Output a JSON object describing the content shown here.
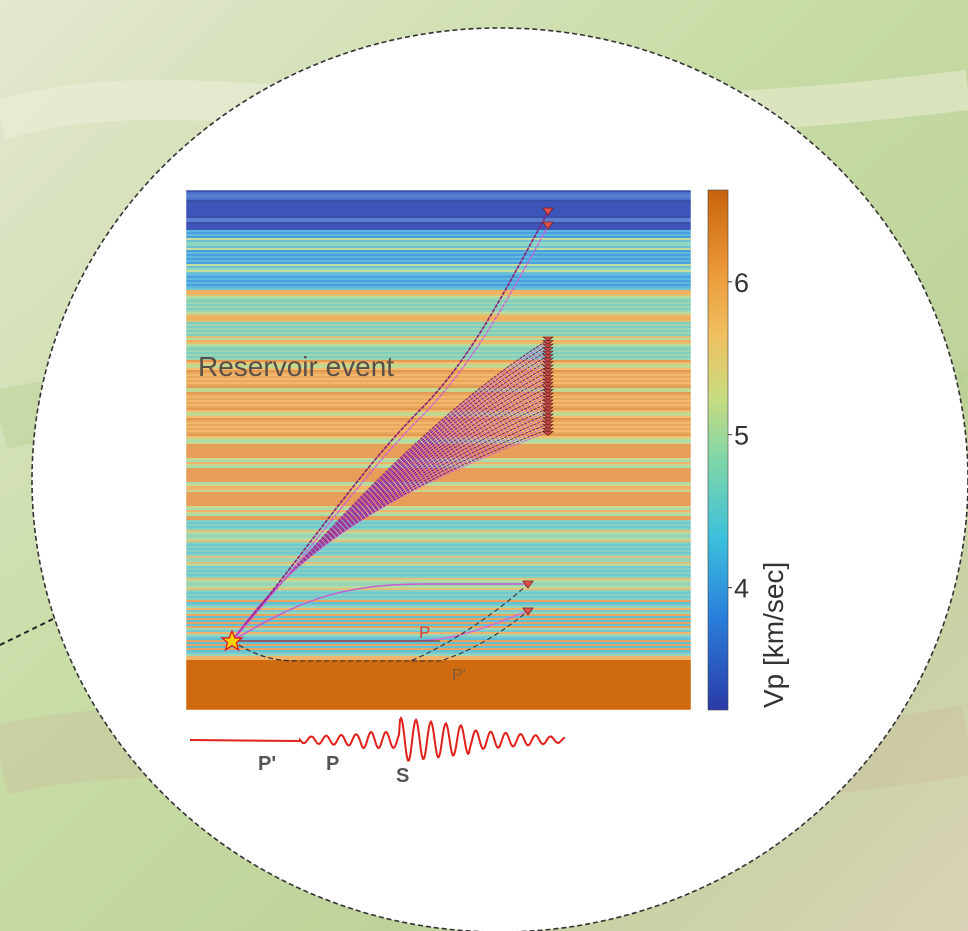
{
  "figure": {
    "annotation_reservoir": "Reservoir event",
    "ray_label_p": "P",
    "ray_label_p_prime": "P'",
    "colorbar": {
      "label": "Vp [km/sec]",
      "ticks": [
        "6",
        "5",
        "4"
      ],
      "tick_values": [
        6,
        5,
        4
      ],
      "range": [
        3.2,
        6.6
      ]
    },
    "waveform_labels": [
      "P'",
      "P",
      "S"
    ],
    "colors": {
      "ray_purple": "#8b1f7a",
      "ray_magenta": "#d35bd8",
      "source_star": "#ffd400",
      "waveform_red": "#e0201a",
      "halfspace_orange": "#d06a0e"
    },
    "icons": {
      "source": "star-icon",
      "receiver": "triangle-down-icon"
    }
  }
}
